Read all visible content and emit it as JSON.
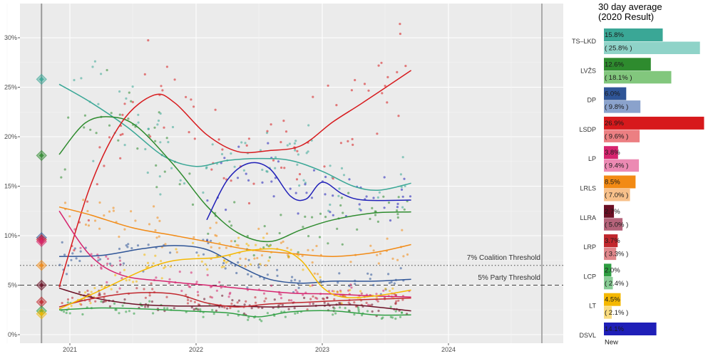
{
  "chart_data": [
    {
      "type": "scatter",
      "title": "",
      "xlabel": "",
      "ylabel": "",
      "x_ticks": [
        "2021",
        "2022",
        "2023",
        "2024"
      ],
      "y_ticks": [
        "0%",
        "5%",
        "10%",
        "15%",
        "20%",
        "25%",
        "30%"
      ],
      "xlim": [
        "2020-10-01",
        "2024-10-31"
      ],
      "ylim": [
        0,
        32
      ],
      "election_date": "2020-10-11",
      "last_poll_date": "2023-09-15",
      "grid": true,
      "thresholds": [
        {
          "label": "7% Coalition Threshold",
          "value": 7,
          "style": "dotted"
        },
        {
          "label": "5% Party Threshold",
          "value": 5,
          "style": "dashed"
        }
      ],
      "series": [
        {
          "name": "TS–LKD",
          "color": "#3aa796",
          "election_result": 25.8,
          "trend": [
            [
              "2020-12-01",
              25.3
            ],
            [
              "2021-03-01",
              23.5
            ],
            [
              "2021-06-15",
              21
            ],
            [
              "2021-10-01",
              18
            ],
            [
              "2022-01-01",
              17
            ],
            [
              "2022-04-01",
              17.6
            ],
            [
              "2022-07-01",
              17.8
            ],
            [
              "2022-10-01",
              17.6
            ],
            [
              "2023-01-01",
              16.5
            ],
            [
              "2023-04-01",
              15
            ],
            [
              "2023-06-15",
              14.6
            ],
            [
              "2023-09-15",
              15.3
            ]
          ]
        },
        {
          "name": "LVŽS",
          "color": "#2e8b2e",
          "election_result": 18.1,
          "trend": [
            [
              "2020-12-01",
              18.2
            ],
            [
              "2021-02-15",
              21.4
            ],
            [
              "2021-05-01",
              22
            ],
            [
              "2021-07-15",
              21
            ],
            [
              "2021-11-01",
              17
            ],
            [
              "2022-02-01",
              13
            ],
            [
              "2022-05-01",
              10.3
            ],
            [
              "2022-08-01",
              9.4
            ],
            [
              "2022-11-01",
              10.6
            ],
            [
              "2023-02-01",
              11.6
            ],
            [
              "2023-06-01",
              12.3
            ],
            [
              "2023-09-15",
              12.4
            ]
          ]
        },
        {
          "name": "DP",
          "color": "#2f5597",
          "election_result": 9.8,
          "trend": [
            [
              "2020-12-01",
              7.9
            ],
            [
              "2021-04-01",
              8
            ],
            [
              "2021-08-01",
              8.7
            ],
            [
              "2021-11-01",
              9
            ],
            [
              "2022-02-01",
              8.6
            ],
            [
              "2022-05-01",
              7
            ],
            [
              "2022-08-01",
              5.6
            ],
            [
              "2022-11-01",
              5.2
            ],
            [
              "2023-02-01",
              5.4
            ],
            [
              "2023-06-01",
              5.4
            ],
            [
              "2023-09-15",
              5.6
            ]
          ]
        },
        {
          "name": "LSDP",
          "color": "#d7191c",
          "election_result": 9.6,
          "trend": [
            [
              "2020-12-01",
              4.8
            ],
            [
              "2021-03-01",
              15
            ],
            [
              "2021-06-01",
              21.5
            ],
            [
              "2021-09-01",
              24.2
            ],
            [
              "2021-11-01",
              23.4
            ],
            [
              "2022-02-01",
              20.2
            ],
            [
              "2022-05-01",
              18.5
            ],
            [
              "2022-08-01",
              18.6
            ],
            [
              "2022-11-01",
              19.1
            ],
            [
              "2023-02-01",
              21.5
            ],
            [
              "2023-05-01",
              23.5
            ],
            [
              "2023-09-15",
              26.7
            ]
          ]
        },
        {
          "name": "LP",
          "color": "#d6246e",
          "election_result": 9.4,
          "trend": [
            [
              "2020-12-01",
              12.5
            ],
            [
              "2021-03-01",
              8
            ],
            [
              "2021-06-01",
              6
            ],
            [
              "2021-10-01",
              5.4
            ],
            [
              "2022-02-01",
              5
            ],
            [
              "2022-06-01",
              4.6
            ],
            [
              "2022-10-01",
              4.2
            ],
            [
              "2023-02-01",
              4.1
            ],
            [
              "2023-06-01",
              3.9
            ],
            [
              "2023-09-15",
              3.8
            ]
          ]
        },
        {
          "name": "LRLS",
          "color": "#f28a14",
          "election_result": 7.0,
          "trend": [
            [
              "2020-12-01",
              12.9
            ],
            [
              "2021-03-01",
              12.1
            ],
            [
              "2021-07-01",
              10.8
            ],
            [
              "2021-11-01",
              10
            ],
            [
              "2022-02-01",
              9.4
            ],
            [
              "2022-06-01",
              8.6
            ],
            [
              "2022-10-01",
              8.2
            ],
            [
              "2023-02-01",
              7.9
            ],
            [
              "2023-06-01",
              8.3
            ],
            [
              "2023-09-15",
              9.1
            ]
          ]
        },
        {
          "name": "LLRA",
          "color": "#6b0f24",
          "election_result": 5.0,
          "trend": [
            [
              "2020-12-01",
              4.7
            ],
            [
              "2021-03-01",
              3.8
            ],
            [
              "2021-07-01",
              3.1
            ],
            [
              "2021-11-01",
              2.9
            ],
            [
              "2022-04-01",
              2.9
            ],
            [
              "2022-08-01",
              2.8
            ],
            [
              "2022-12-01",
              2.9
            ],
            [
              "2023-04-01",
              3
            ],
            [
              "2023-09-15",
              2.4
            ]
          ]
        },
        {
          "name": "LRP",
          "color": "#c1272d",
          "election_result": 3.3,
          "trend": [
            [
              "2020-12-01",
              2.8
            ],
            [
              "2021-03-01",
              3.6
            ],
            [
              "2021-07-01",
              4.2
            ],
            [
              "2021-11-01",
              4.1
            ],
            [
              "2022-02-01",
              3.2
            ],
            [
              "2022-05-01",
              2.8
            ],
            [
              "2022-08-01",
              3.1
            ],
            [
              "2022-12-01",
              3.3
            ],
            [
              "2023-04-01",
              3.5
            ],
            [
              "2023-09-15",
              3.7
            ]
          ]
        },
        {
          "name": "LCP",
          "color": "#2e9e42",
          "election_result": 2.4,
          "trend": [
            [
              "2020-12-01",
              2.5
            ],
            [
              "2021-04-01",
              2.7
            ],
            [
              "2021-08-01",
              2.6
            ],
            [
              "2021-12-01",
              2.4
            ],
            [
              "2022-04-01",
              2.2
            ],
            [
              "2022-07-01",
              1.8
            ],
            [
              "2022-10-01",
              2.3
            ],
            [
              "2023-02-01",
              2.4
            ],
            [
              "2023-06-01",
              2
            ],
            [
              "2023-09-15",
              2.0
            ]
          ]
        },
        {
          "name": "LT",
          "color": "#f5b800",
          "election_result": 2.1,
          "trend": [
            [
              "2020-12-01",
              2.6
            ],
            [
              "2021-04-01",
              4.5
            ],
            [
              "2021-08-01",
              6.5
            ],
            [
              "2021-11-01",
              7.5
            ],
            [
              "2022-03-01",
              7.8
            ],
            [
              "2022-06-01",
              8.5
            ],
            [
              "2022-09-01",
              8.6
            ],
            [
              "2022-11-01",
              7.5
            ],
            [
              "2023-01-01",
              4.8
            ],
            [
              "2023-03-01",
              3.8
            ],
            [
              "2023-06-01",
              3.9
            ],
            [
              "2023-09-15",
              4.5
            ]
          ]
        },
        {
          "name": "DSVL",
          "color": "#1f1fb8",
          "election_result": null,
          "trend": [
            [
              "2022-02-01",
              11.6
            ],
            [
              "2022-04-01",
              15.6
            ],
            [
              "2022-06-01",
              17.3
            ],
            [
              "2022-08-01",
              16.8
            ],
            [
              "2022-10-01",
              14
            ],
            [
              "2022-11-15",
              13.7
            ],
            [
              "2023-01-01",
              15.4
            ],
            [
              "2023-03-01",
              14.2
            ],
            [
              "2023-05-01",
              13.6
            ],
            [
              "2023-09-15",
              13.6
            ]
          ]
        }
      ]
    },
    {
      "type": "bar",
      "title": "30 day average\n(2020 Result)",
      "categories": [
        "TS–LKD",
        "LVŽS",
        "DP",
        "LSDP",
        "LP",
        "LRLS",
        "LLRA",
        "LRP",
        "LCP",
        "LT",
        "DSVL"
      ],
      "xlim": [
        0,
        27
      ],
      "series": [
        {
          "name": "30 day average",
          "values": [
            15.8,
            12.6,
            6.0,
            26.9,
            3.8,
            8.5,
            2.7,
            3.7,
            2.0,
            4.5,
            14.1
          ],
          "labels": [
            "15.8%",
            "12.6%",
            "6.0%",
            "26.9%",
            "3.8%",
            "8.5%",
            "2.7%",
            "3.7%",
            "2.0%",
            "4.5%",
            "14.1%"
          ]
        },
        {
          "name": "2020 Result",
          "values": [
            25.8,
            18.1,
            9.8,
            9.6,
            9.4,
            7.0,
            5.0,
            3.3,
            2.4,
            2.1,
            null
          ],
          "labels": [
            "( 25.8% )",
            "( 18.1% )",
            "( 9.8% )",
            "( 9.6% )",
            "( 9.4% )",
            "( 7.0% )",
            "( 5.0% )",
            "( 3.3% )",
            "( 2.4% )",
            "( 2.1% )",
            "New"
          ]
        }
      ],
      "colors_current": [
        "#3aa796",
        "#2e8b2e",
        "#2f5597",
        "#d7191c",
        "#d6246e",
        "#f28a14",
        "#6b0f24",
        "#c1272d",
        "#2e9e42",
        "#f5b800",
        "#1f1fb8"
      ],
      "colors_result": [
        "#8fd3c8",
        "#82c77d",
        "#8aa2cc",
        "#ec7f82",
        "#ec8ab3",
        "#f7c08a",
        "#b5637a",
        "#e0878b",
        "#88cc95",
        "#f9dc80",
        "#8f8fdc"
      ]
    }
  ]
}
